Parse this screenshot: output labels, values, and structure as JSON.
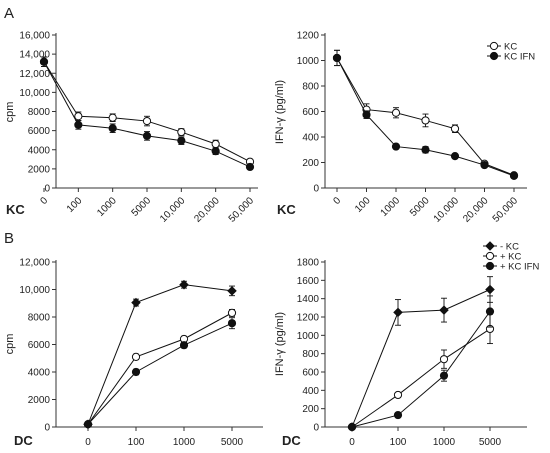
{
  "panel_labels": {
    "a": "A",
    "b": "B"
  },
  "chart_data": [
    {
      "type": "line",
      "ylabel": "cpm",
      "xaxis_title": "KC",
      "categories": [
        "0",
        "100",
        "1000",
        "5000",
        "10,000",
        "20,000",
        "50,000"
      ],
      "ylim": [
        0,
        16000
      ],
      "yticks": [
        "0",
        "2000",
        "4000",
        "6000",
        "8000",
        "10,000",
        "12,000",
        "14,000",
        "16,000"
      ],
      "legend": false,
      "series": [
        {
          "name": "KC",
          "marker": "open-circle",
          "values": [
            13200,
            7500,
            7350,
            7000,
            5850,
            4600,
            2750
          ],
          "errors": [
            500,
            450,
            400,
            500,
            350,
            400,
            250
          ]
        },
        {
          "name": "KC IFN",
          "marker": "filled-circle",
          "values": [
            13200,
            6600,
            6250,
            5450,
            4950,
            3850,
            2200
          ],
          "errors": [
            500,
            450,
            450,
            450,
            400,
            350,
            200
          ]
        }
      ]
    },
    {
      "type": "line",
      "ylabel": "IFN-γ (pg/ml)",
      "xaxis_title": "KC",
      "categories": [
        "0",
        "100",
        "1000",
        "5000",
        "10,000",
        "20,000",
        "50,000"
      ],
      "ylim": [
        0,
        1200
      ],
      "yticks": [
        "0",
        "200",
        "400",
        "600",
        "800",
        "1000",
        "1200"
      ],
      "legend": true,
      "legend_position": "top-right",
      "series": [
        {
          "name": "KC",
          "marker": "open-circle",
          "values": [
            1020,
            615,
            590,
            530,
            465,
            190,
            100
          ],
          "errors": [
            60,
            45,
            40,
            50,
            30,
            15,
            10
          ]
        },
        {
          "name": "KC IFN",
          "marker": "filled-circle",
          "values": [
            1020,
            575,
            325,
            300,
            250,
            180,
            95
          ],
          "errors": [
            60,
            30,
            15,
            25,
            15,
            15,
            10
          ]
        }
      ]
    },
    {
      "type": "line",
      "ylabel": "cpm",
      "xaxis_title": "DC",
      "categories": [
        "0",
        "100",
        "1000",
        "5000"
      ],
      "ylim": [
        0,
        12000
      ],
      "yticks": [
        "0",
        "2000",
        "4000",
        "6000",
        "8000",
        "10,000",
        "12,000"
      ],
      "legend": false,
      "series": [
        {
          "name": "- KC",
          "marker": "filled-diamond",
          "values": [
            200,
            9050,
            10350,
            9900
          ],
          "errors": [
            50,
            250,
            250,
            350
          ]
        },
        {
          "name": "+ KC",
          "marker": "open-circle",
          "values": [
            200,
            5100,
            6400,
            8300
          ],
          "errors": [
            50,
            200,
            200,
            250
          ]
        },
        {
          "name": "+ KC IFN",
          "marker": "filled-circle",
          "values": [
            200,
            4000,
            5950,
            7550
          ],
          "errors": [
            50,
            200,
            200,
            400
          ]
        }
      ]
    },
    {
      "type": "line",
      "ylabel": "IFN-γ (pg/ml)",
      "xaxis_title": "DC",
      "categories": [
        "0",
        "100",
        "1000",
        "5000"
      ],
      "ylim": [
        0,
        1800
      ],
      "yticks": [
        "0",
        "200",
        "400",
        "600",
        "800",
        "1000",
        "1200",
        "1400",
        "1600",
        "1800"
      ],
      "legend": true,
      "legend_position": "top-right",
      "series": [
        {
          "name": "- KC",
          "marker": "filled-diamond",
          "values": [
            0,
            1250,
            1275,
            1500
          ],
          "errors": [
            0,
            140,
            130,
            140
          ]
        },
        {
          "name": "+ KC",
          "marker": "open-circle",
          "values": [
            0,
            350,
            740,
            1070
          ],
          "errors": [
            0,
            25,
            100,
            160
          ]
        },
        {
          "name": "+ KC IFN",
          "marker": "filled-circle",
          "values": [
            0,
            130,
            560,
            1260
          ],
          "errors": [
            0,
            10,
            60,
            170
          ]
        }
      ]
    }
  ]
}
